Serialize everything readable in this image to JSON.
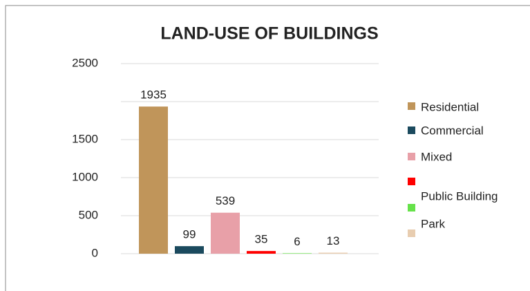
{
  "chart_data": {
    "type": "bar",
    "title": "LAND-USE OF BUILDINGS",
    "categories": [
      "Residential",
      "Commercial",
      "Mixed",
      "Public Building",
      null,
      "Park"
    ],
    "values": [
      1935,
      99,
      539,
      35,
      6,
      13
    ],
    "colors": [
      "#C0955A",
      "#1B4A5E",
      "#E8A0A8",
      "#FF0000",
      "#66E24A",
      "#E8CDB0"
    ],
    "ylim": [
      0,
      2500
    ],
    "yticks": [
      0,
      500,
      1000,
      1500,
      {
        "value": 2000,
        "label": null
      },
      2500
    ],
    "grid": true,
    "legend": "right"
  }
}
